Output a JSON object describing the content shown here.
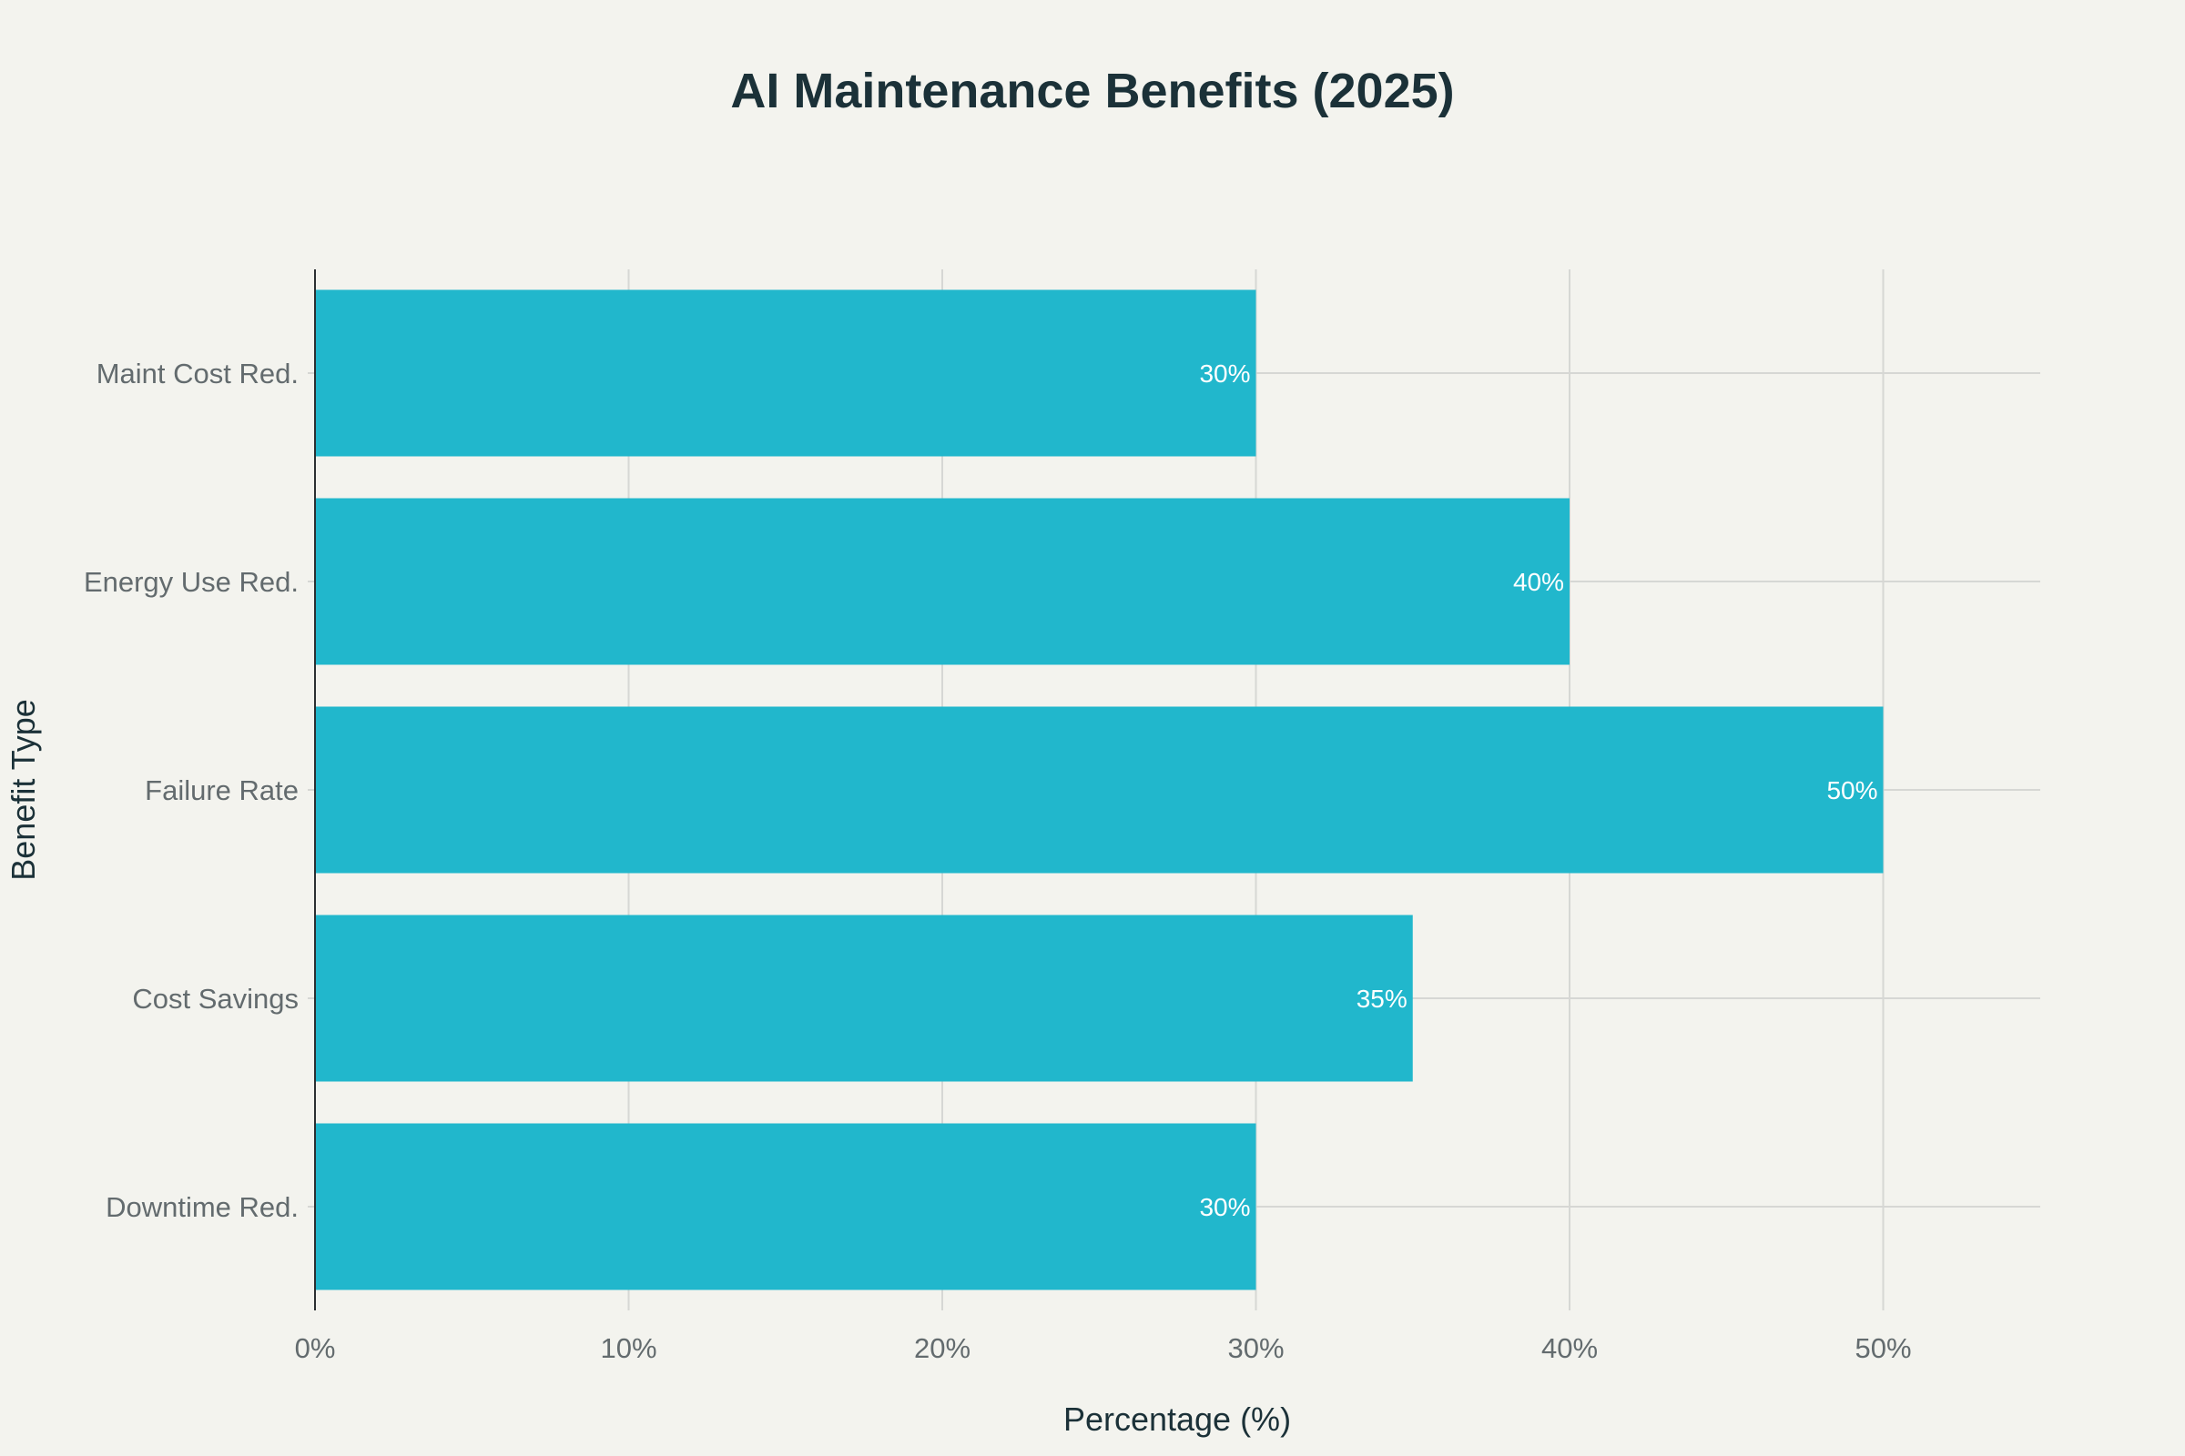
{
  "chart_data": {
    "type": "bar",
    "orientation": "horizontal",
    "title": "AI Maintenance Benefits (2025)",
    "xlabel": "Percentage (%)",
    "ylabel": "Benefit Type",
    "categories": [
      "Maint Cost Red.",
      "Energy Use Red.",
      "Failure Rate",
      "Cost Savings",
      "Downtime Red."
    ],
    "values": [
      30,
      40,
      50,
      35,
      30
    ],
    "data_labels": [
      "30%",
      "40%",
      "50%",
      "35%",
      "30%"
    ],
    "xlim": [
      0,
      55
    ],
    "x_ticks": [
      0,
      10,
      20,
      30,
      40,
      50
    ],
    "x_tick_labels": [
      "0%",
      "10%",
      "20%",
      "30%",
      "40%",
      "50%"
    ],
    "bar_color": "#21b7cc",
    "grid": true
  }
}
